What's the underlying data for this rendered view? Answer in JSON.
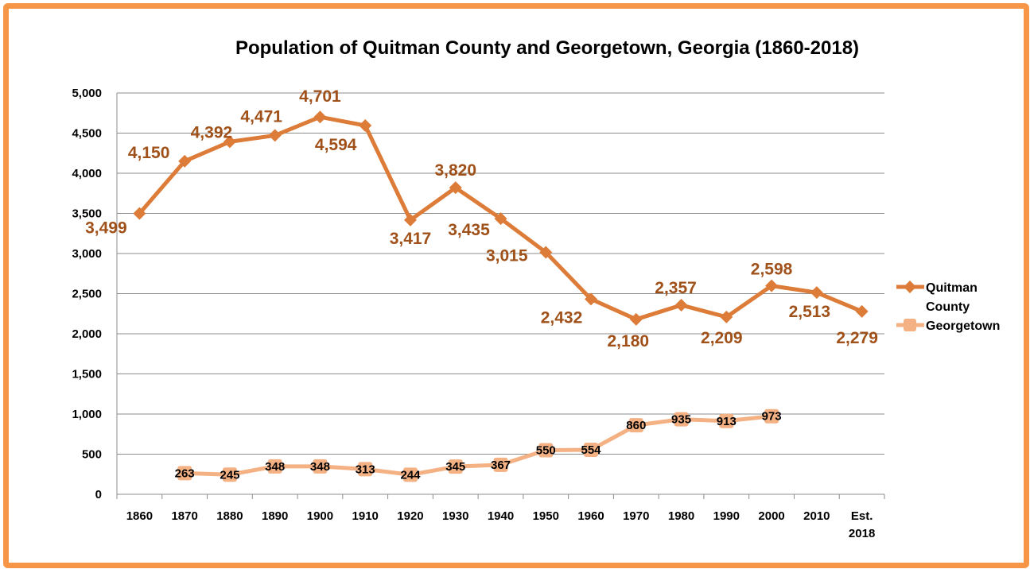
{
  "chart_data": {
    "type": "line",
    "title": "Population of Quitman County and Georgetown, Georgia (1860-2018)",
    "categories": [
      "1860",
      "1870",
      "1880",
      "1890",
      "1900",
      "1910",
      "1920",
      "1930",
      "1940",
      "1950",
      "1960",
      "1970",
      "1980",
      "1990",
      "2000",
      "2010",
      "Est. 2018"
    ],
    "ylim": [
      0,
      5000
    ],
    "yticks": [
      0,
      500,
      1000,
      1500,
      2000,
      2500,
      3000,
      3500,
      4000,
      4500,
      5000
    ],
    "ytick_labels": [
      "0",
      "500",
      "1,000",
      "1,500",
      "2,000",
      "2,500",
      "3,000",
      "3,500",
      "4,000",
      "4,500",
      "5,000"
    ],
    "grid": true,
    "legend_position": "right",
    "series": [
      {
        "name": "Quitman County",
        "color": "#DD7C38",
        "label_color": "#A0511A",
        "marker": "diamond",
        "values": [
          3499,
          4150,
          4392,
          4471,
          4701,
          4594,
          3417,
          3820,
          3435,
          3015,
          2432,
          2180,
          2357,
          2209,
          2598,
          2513,
          2279
        ]
      },
      {
        "name": "Georgetown",
        "color": "#F4B183",
        "marker": "square",
        "values": [
          null,
          263,
          245,
          348,
          348,
          313,
          244,
          345,
          367,
          550,
          554,
          860,
          935,
          913,
          973,
          null,
          null
        ]
      }
    ]
  },
  "frame_color": "#F79646"
}
